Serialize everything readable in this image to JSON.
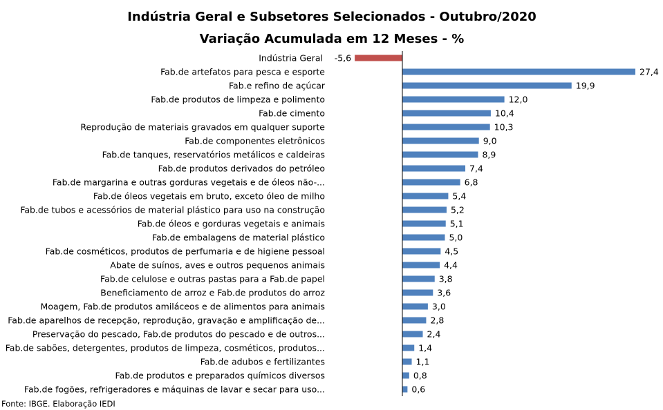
{
  "chart_data": {
    "type": "bar",
    "orientation": "horizontal",
    "title": "Indústria Geral e Subsetores Selecionados - Outubro/2020",
    "subtitle": "Variação Acumulada em 12 Meses - %",
    "source": "Fonte: IBGE. Elaboração IEDI",
    "colors": {
      "negative": "#c0504d",
      "positive": "#4f81bd"
    },
    "xlim": [
      -5.6,
      27.4
    ],
    "grid": false,
    "legend": "none",
    "categories": [
      "Indústria Geral",
      "Fab.de artefatos para pesca e esporte",
      "Fab.e refino de açúcar",
      "Fab.de produtos de limpeza e polimento",
      "Fab.de cimento",
      "Reprodução de materiais gravados em qualquer suporte",
      "Fab.de componentes eletrônicos",
      "Fab.de tanques, reservatórios metálicos e caldeiras",
      "Fab.de produtos derivados do petróleo",
      "Fab.de margarina e outras gorduras vegetais e de óleos não-...",
      "Fab.de óleos vegetais em bruto, exceto óleo de milho",
      "Fab.de tubos e acessórios de material plástico para uso na construção",
      "Fab.de óleos e gorduras vegetais e animais",
      "Fab.de embalagens de material plástico",
      "Fab.de cosméticos, produtos de perfumaria e de higiene pessoal",
      "Abate de suínos, aves e outros pequenos animais",
      "Fab.de celulose e outras pastas para a Fab.de papel",
      "Beneficiamento de arroz e Fab.de produtos do arroz",
      "Moagem, Fab.de produtos amiláceos e de alimentos para animais",
      "Fab.de aparelhos de recepção, reprodução, gravação e amplificação de...",
      "Preservação do pescado, Fab.de produtos do pescado e de outros...",
      "Fab.de sabões, detergentes, produtos de limpeza, cosméticos, produtos...",
      "Fab.de adubos e fertilizantes",
      "Fab.de produtos e preparados químicos diversos",
      "Fab.de fogões, refrigeradores e máquinas de lavar e secar para uso..."
    ],
    "values": [
      -5.6,
      27.4,
      19.9,
      12.0,
      10.4,
      10.3,
      9.0,
      8.9,
      7.4,
      6.8,
      5.4,
      5.2,
      5.1,
      5.0,
      4.5,
      4.4,
      3.8,
      3.6,
      3.0,
      2.8,
      2.4,
      1.4,
      1.1,
      0.8,
      0.6
    ],
    "value_labels": [
      "-5,6",
      "27,4",
      "19,9",
      "12,0",
      "10,4",
      "10,3",
      "9,0",
      "8,9",
      "7,4",
      "6,8",
      "5,4",
      "5,2",
      "5,1",
      "5,0",
      "4,5",
      "4,4",
      "3,8",
      "3,6",
      "3,0",
      "2,8",
      "2,4",
      "1,4",
      "1,1",
      "0,8",
      "0,6"
    ]
  }
}
